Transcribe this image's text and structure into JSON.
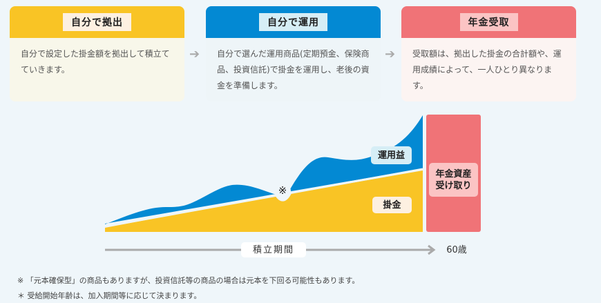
{
  "steps": [
    {
      "title": "自分で拠出",
      "text": "自分で設定した掛金額を拠出して積立てていきます。",
      "color": "#f9c425",
      "tag_bg": "#fdf0e1",
      "body_bg": "#f8f7ea"
    },
    {
      "title": "自分で運用",
      "text": "自分で選んだ運用商品(定期預金、保険商品、投資信託)で掛金を運用し、老後の資金を準備します。",
      "color": "#0389d3",
      "tag_bg": "#d6eef6",
      "body_bg": "#eef5f8"
    },
    {
      "title": "年金受取",
      "text": "受取額は、拠出した掛金の合計額や、運用成績によって、一人ひとり異なります。",
      "color": "#f07377",
      "tag_bg": "#fbc4c4",
      "body_bg": "#fcf4f2"
    }
  ],
  "diagram": {
    "gain_label": "運用益",
    "contrib_label": "掛金",
    "note_mark": "※",
    "receive_label": "年金資産\n受け取り",
    "period_label": "積立期間",
    "age_label": "60歳"
  },
  "footnotes": [
    "※ 「元本確保型」の商品もありますが、投資信託等の商品の場合は元本を下回る可能性もあります。",
    "＊ 受給開始年齢は、加入期間等に応じて決まります。"
  ]
}
